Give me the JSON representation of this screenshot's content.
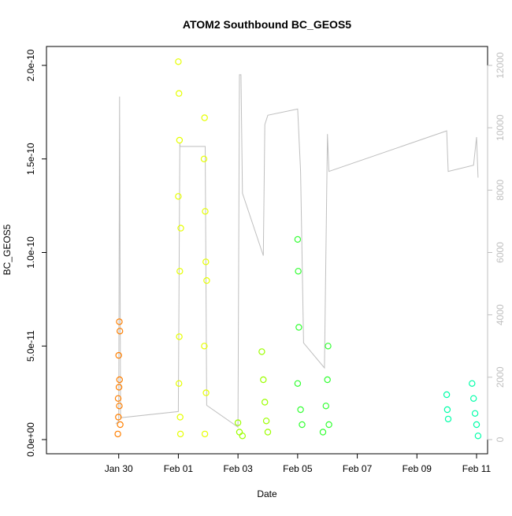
{
  "chart_data": {
    "type": "scatter",
    "title": "ATOM2 Southbound BC_GEOS5",
    "xlabel": "Date",
    "ylabel": "BC_GEOS5",
    "secondary_axis": {
      "ylim": [
        0,
        12000
      ],
      "ticks": [
        0,
        2000,
        4000,
        6000,
        8000,
        10000,
        12000
      ],
      "color": "#bfbfbf"
    },
    "xlim": [
      "2017-01-28",
      "2017-02-11"
    ],
    "x_ticks": [
      {
        "label": "Jan 30",
        "value": "2017-01-30"
      },
      {
        "label": "Feb 01",
        "value": "2017-02-01"
      },
      {
        "label": "Feb 03",
        "value": "2017-02-03"
      },
      {
        "label": "Feb 05",
        "value": "2017-02-05"
      },
      {
        "label": "Feb 07",
        "value": "2017-02-07"
      },
      {
        "label": "Feb 09",
        "value": "2017-02-09"
      },
      {
        "label": "Feb 11",
        "value": "2017-02-11"
      }
    ],
    "ylim": [
      0,
      2e-10
    ],
    "y_ticks": [
      {
        "label": "0.0e+00",
        "value": 0
      },
      {
        "label": "5.0e-11",
        "value": 5e-11
      },
      {
        "label": "1.0e-10",
        "value": 1e-10
      },
      {
        "label": "1.5e-10",
        "value": 1.5e-10
      },
      {
        "label": "2.0e-10",
        "value": 2e-10
      }
    ],
    "grid": false,
    "legend": "none",
    "series": [
      {
        "color": "#ff7f00",
        "points": [
          [
            "2017-01-29.97",
            3e-12
          ],
          [
            "2017-01-29.99",
            1.2e-11
          ],
          [
            "2017-01-30.01",
            2.8e-11
          ],
          [
            "2017-01-30.03",
            3.2e-11
          ],
          [
            "2017-01-30.00",
            4.5e-11
          ],
          [
            "2017-01-30.02",
            6.3e-11
          ],
          [
            "2017-01-30.04",
            5.8e-11
          ],
          [
            "2017-01-30.02",
            1.8e-11
          ],
          [
            "2017-01-29.98",
            2.2e-11
          ],
          [
            "2017-01-30.05",
            8e-12
          ]
        ]
      },
      {
        "color": "#e6ff00",
        "points": [
          [
            "2017-02-01.00",
            2.02e-10
          ],
          [
            "2017-02-01.02",
            1.85e-10
          ],
          [
            "2017-02-01.04",
            1.6e-10
          ],
          [
            "2017-02-01.00",
            1.3e-10
          ],
          [
            "2017-02-01.08",
            1.13e-10
          ],
          [
            "2017-02-01.05",
            9e-11
          ],
          [
            "2017-02-01.03",
            5.5e-11
          ],
          [
            "2017-02-01.02",
            3e-11
          ],
          [
            "2017-02-01.06",
            1.2e-11
          ],
          [
            "2017-02-01.07",
            3e-12
          ],
          [
            "2017-02-01.88",
            1.72e-10
          ],
          [
            "2017-02-01.86",
            1.5e-10
          ],
          [
            "2017-02-01.90",
            1.22e-10
          ],
          [
            "2017-02-01.92",
            9.5e-11
          ],
          [
            "2017-02-01.95",
            8.5e-11
          ],
          [
            "2017-02-01.87",
            5e-11
          ],
          [
            "2017-02-01.93",
            2.5e-11
          ],
          [
            "2017-02-01.89",
            3e-12
          ]
        ]
      },
      {
        "color": "#9cff00",
        "points": [
          [
            "2017-02-03.00",
            9e-12
          ],
          [
            "2017-02-03.05",
            4e-12
          ],
          [
            "2017-02-03.15",
            2e-12
          ],
          [
            "2017-02-03.80",
            4.7e-11
          ],
          [
            "2017-02-03.85",
            3.2e-11
          ],
          [
            "2017-02-03.90",
            2e-11
          ],
          [
            "2017-02-03.95",
            1e-11
          ],
          [
            "2017-02-04.00",
            4e-12
          ]
        ]
      },
      {
        "color": "#33ff33",
        "points": [
          [
            "2017-02-05.00",
            1.07e-10
          ],
          [
            "2017-02-05.02",
            9e-11
          ],
          [
            "2017-02-05.04",
            6e-11
          ],
          [
            "2017-02-05.00",
            3e-11
          ],
          [
            "2017-02-05.10",
            1.6e-11
          ],
          [
            "2017-02-05.15",
            8e-12
          ],
          [
            "2017-02-05.85",
            4e-12
          ],
          [
            "2017-02-05.95",
            1.8e-11
          ],
          [
            "2017-02-06.00",
            3.2e-11
          ],
          [
            "2017-02-06.02",
            5e-11
          ],
          [
            "2017-02-06.05",
            8e-12
          ]
        ]
      },
      {
        "color": "#00ffa8",
        "points": [
          [
            "2017-02-10.00",
            2.4e-11
          ],
          [
            "2017-02-10.02",
            1.6e-11
          ],
          [
            "2017-02-10.05",
            1.1e-11
          ],
          [
            "2017-02-10.85",
            3e-11
          ],
          [
            "2017-02-10.90",
            2.2e-11
          ],
          [
            "2017-02-10.95",
            1.4e-11
          ],
          [
            "2017-02-11.00",
            8e-12
          ],
          [
            "2017-02-11.05",
            2e-12
          ]
        ]
      }
    ],
    "secondary_series": {
      "color": "#bfbfbf",
      "points": [
        [
          "2017-01-29.90",
          500
        ],
        [
          "2017-01-30.00",
          600
        ],
        [
          "2017-01-30.03",
          11000
        ],
        [
          "2017-01-30.06",
          700
        ],
        [
          "2017-02-01.00",
          900
        ],
        [
          "2017-02-01.05",
          9500
        ],
        [
          "2017-02-01.06",
          9400
        ],
        [
          "2017-02-01.90",
          9400
        ],
        [
          "2017-02-01.95",
          1100
        ],
        [
          "2017-02-03.00",
          400
        ],
        [
          "2017-02-03.05",
          11700
        ],
        [
          "2017-02-03.10",
          11700
        ],
        [
          "2017-02-03.15",
          7900
        ],
        [
          "2017-02-03.85",
          5900
        ],
        [
          "2017-02-03.90",
          10100
        ],
        [
          "2017-02-04.00",
          10400
        ],
        [
          "2017-02-05.00",
          10600
        ],
        [
          "2017-02-05.10",
          8600
        ],
        [
          "2017-02-05.20",
          3100
        ],
        [
          "2017-02-05.90",
          2300
        ],
        [
          "2017-02-06.00",
          9800
        ],
        [
          "2017-02-06.05",
          8600
        ],
        [
          "2017-02-10.00",
          9900
        ],
        [
          "2017-02-10.05",
          8600
        ],
        [
          "2017-02-10.90",
          8800
        ],
        [
          "2017-02-11.00",
          9700
        ],
        [
          "2017-02-11.05",
          8400
        ]
      ]
    }
  }
}
